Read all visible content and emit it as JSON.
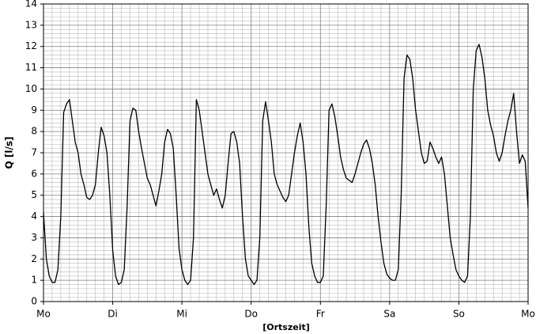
{
  "chart_data": {
    "type": "line",
    "y_label": "Q [l/s]",
    "x_label": "[Ortszeit]",
    "xlim": [
      0,
      168
    ],
    "xticks": [
      {
        "value": 0,
        "label": "Mo"
      },
      {
        "value": 24,
        "label": "Di"
      },
      {
        "value": 48,
        "label": "Mi"
      },
      {
        "value": 72,
        "label": "Do"
      },
      {
        "value": 96,
        "label": "Fr"
      },
      {
        "value": 120,
        "label": "Sa"
      },
      {
        "value": 144,
        "label": "So"
      },
      {
        "value": 168,
        "label": "Mo"
      }
    ],
    "ylim": [
      0,
      14
    ],
    "yticks": [
      0,
      1,
      2,
      3,
      4,
      5,
      6,
      7,
      8,
      9,
      10,
      11,
      12,
      13,
      14
    ],
    "grid": true,
    "minor_grid": true,
    "series": [
      {
        "color": "#000000",
        "x": [
          0,
          1,
          2,
          3,
          4,
          5,
          6,
          7,
          8,
          9,
          10,
          11,
          12,
          13,
          14,
          15,
          16,
          17,
          18,
          19,
          20,
          21,
          22,
          23,
          24,
          25,
          26,
          27,
          28,
          29,
          30,
          31,
          32,
          33,
          34,
          35,
          36,
          37,
          38,
          39,
          40,
          41,
          42,
          43,
          44,
          45,
          46,
          47,
          48,
          49,
          50,
          51,
          52,
          53,
          54,
          55,
          56,
          57,
          58,
          59,
          60,
          61,
          62,
          63,
          64,
          65,
          66,
          67,
          68,
          69,
          70,
          71,
          72,
          73,
          74,
          75,
          76,
          77,
          78,
          79,
          80,
          81,
          82,
          83,
          84,
          85,
          86,
          87,
          88,
          89,
          90,
          91,
          92,
          93,
          94,
          95,
          96,
          97,
          98,
          99,
          100,
          101,
          102,
          103,
          104,
          105,
          106,
          107,
          108,
          109,
          110,
          111,
          112,
          113,
          114,
          115,
          116,
          117,
          118,
          119,
          120,
          121,
          122,
          123,
          124,
          125,
          126,
          127,
          128,
          129,
          130,
          131,
          132,
          133,
          134,
          135,
          136,
          137,
          138,
          139,
          140,
          141,
          142,
          143,
          144,
          145,
          146,
          147,
          148,
          149,
          150,
          151,
          152,
          153,
          154,
          155,
          156,
          157,
          158,
          159,
          160,
          161,
          162,
          163,
          164,
          165,
          166,
          167,
          168
        ],
        "values": [
          4.2,
          2.0,
          1.2,
          0.9,
          0.9,
          1.5,
          4.0,
          8.9,
          9.3,
          9.5,
          8.5,
          7.5,
          7.0,
          6.0,
          5.5,
          4.9,
          4.8,
          5.0,
          5.5,
          7.0,
          8.2,
          7.8,
          7.0,
          5.0,
          2.4,
          1.2,
          0.8,
          0.9,
          1.5,
          4.5,
          8.5,
          9.1,
          9.0,
          8.0,
          7.2,
          6.5,
          5.8,
          5.5,
          5.0,
          4.5,
          5.2,
          6.0,
          7.5,
          8.1,
          7.9,
          7.2,
          5.0,
          2.5,
          1.5,
          1.0,
          0.8,
          1.0,
          3.0,
          9.5,
          9.0,
          8.0,
          7.0,
          6.0,
          5.5,
          5.0,
          5.3,
          4.8,
          4.4,
          5.0,
          6.5,
          7.9,
          8.0,
          7.5,
          6.5,
          4.0,
          2.0,
          1.2,
          1.0,
          0.8,
          1.0,
          3.0,
          8.5,
          9.4,
          8.5,
          7.5,
          6.0,
          5.5,
          5.2,
          4.9,
          4.7,
          5.0,
          6.0,
          7.0,
          7.8,
          8.4,
          7.5,
          6.0,
          3.5,
          1.8,
          1.2,
          0.9,
          0.9,
          1.2,
          4.5,
          9.0,
          9.3,
          8.7,
          7.8,
          6.8,
          6.2,
          5.8,
          5.7,
          5.6,
          6.0,
          6.5,
          7.0,
          7.4,
          7.6,
          7.2,
          6.5,
          5.5,
          4.0,
          2.8,
          1.8,
          1.3,
          1.1,
          1.0,
          1.0,
          1.5,
          5.0,
          10.5,
          11.6,
          11.4,
          10.5,
          9.0,
          8.0,
          7.0,
          6.5,
          6.6,
          7.5,
          7.2,
          6.8,
          6.5,
          6.8,
          6.0,
          4.5,
          3.0,
          2.2,
          1.5,
          1.2,
          1.0,
          0.9,
          1.2,
          4.0,
          10.0,
          11.8,
          12.1,
          11.5,
          10.5,
          9.0,
          8.3,
          7.8,
          7.0,
          6.6,
          7.0,
          7.8,
          8.5,
          9.0,
          9.8,
          8.0,
          6.5,
          6.9,
          6.6,
          4.4
        ]
      }
    ]
  }
}
